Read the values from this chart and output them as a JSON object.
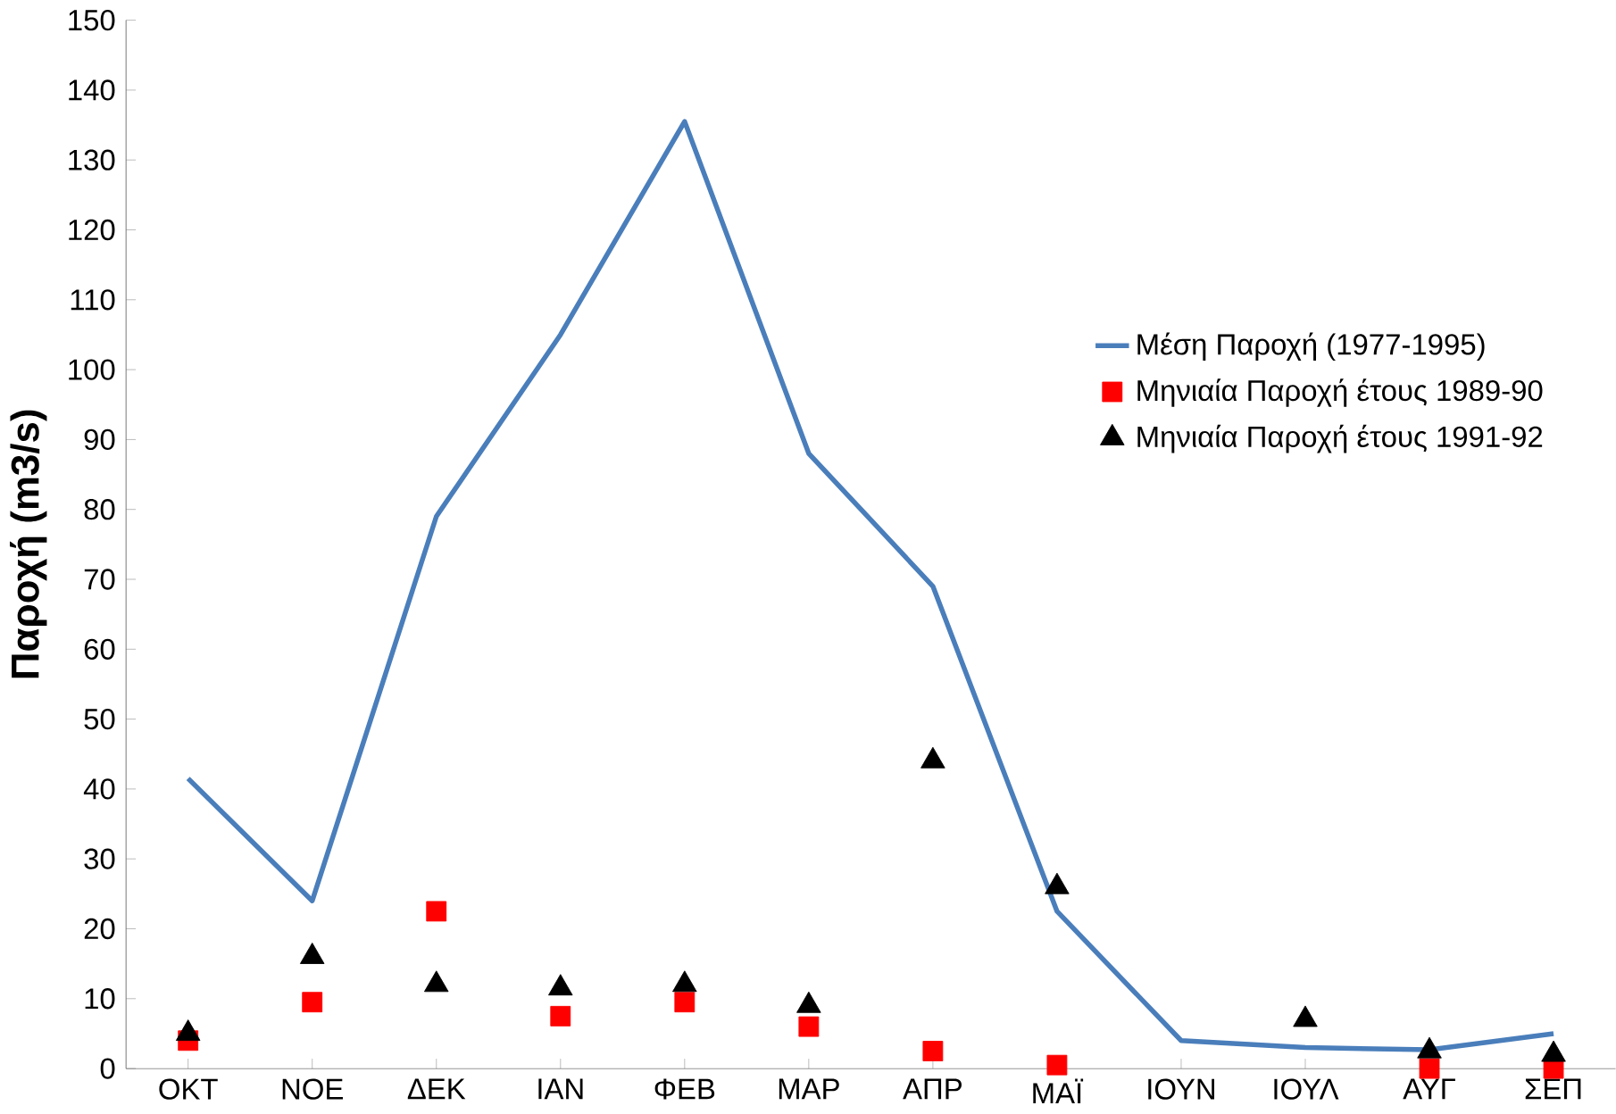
{
  "chart_data": {
    "type": "line",
    "ylabel": "Παροχή (m3/s)",
    "categories": [
      "ΟΚΤ",
      "ΝΟΕ",
      "ΔΕΚ",
      "ΙΑΝ",
      "ΦΕΒ",
      "ΜΑΡ",
      "ΑΠΡ",
      "ΜΑΪ",
      "ΙΟΥΝ",
      "ΙΟΥΛ",
      "ΑΥΓ",
      "ΣΕΠ"
    ],
    "series": [
      {
        "name": "Μέση Παροχή (1977-1995)",
        "color": "#4a7ebb",
        "marker": "none",
        "values": [
          41.5,
          24,
          79,
          105,
          135.5,
          88,
          69,
          22.5,
          4,
          3,
          2.7,
          5
        ]
      },
      {
        "name": "Μηνιαία Παροχή έτους 1989-90",
        "type": "scatter",
        "color": "#ff0000",
        "marker": "square",
        "values": [
          4,
          9.5,
          22.5,
          7.5,
          9.5,
          6,
          2.5,
          0.5,
          null,
          null,
          0,
          0
        ]
      },
      {
        "name": "Μηνιαία Παροχή έτους 1991-92",
        "type": "scatter",
        "color": "#000000",
        "marker": "triangle",
        "values": [
          5,
          16,
          12,
          11.5,
          12,
          9,
          44,
          26,
          null,
          7,
          2.5,
          2
        ]
      }
    ],
    "ylim": [
      0,
      150
    ],
    "yticks": [
      0,
      10,
      20,
      30,
      40,
      50,
      60,
      70,
      80,
      90,
      100,
      110,
      120,
      130,
      140,
      150
    ],
    "grid": false,
    "legend": "right"
  }
}
